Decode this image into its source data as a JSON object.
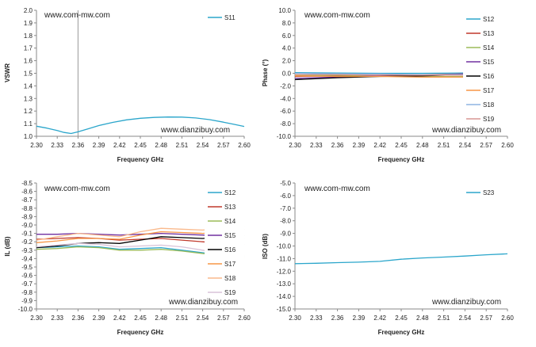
{
  "chart_data": [
    {
      "type": "line",
      "id": "vswr",
      "watermark_top": "www.com-mw.com",
      "watermark_bottom": "www.dianzibuy.com",
      "xlabel": "Frequency GHz",
      "ylabel": "VSWR",
      "xlim": [
        2.3,
        2.6
      ],
      "ylim": [
        1.0,
        2.0
      ],
      "x_ticks": [
        "2.30",
        "2.33",
        "2.36",
        "2.39",
        "2.42",
        "2.45",
        "2.48",
        "2.51",
        "2.54",
        "2.57",
        "2.60"
      ],
      "y_ticks": [
        "1.0",
        "1.1",
        "1.2",
        "1.3",
        "1.4",
        "1.5",
        "1.6",
        "1.7",
        "1.8",
        "1.9",
        "2.0"
      ],
      "marker_x": 2.36,
      "series": [
        {
          "name": "S11",
          "color": "#2ba6cb",
          "x": [
            2.3,
            2.315,
            2.33,
            2.34,
            2.35,
            2.36,
            2.375,
            2.39,
            2.41,
            2.43,
            2.45,
            2.47,
            2.49,
            2.51,
            2.53,
            2.55,
            2.57,
            2.585,
            2.6
          ],
          "y": [
            1.08,
            1.065,
            1.045,
            1.03,
            1.022,
            1.035,
            1.06,
            1.085,
            1.11,
            1.13,
            1.143,
            1.15,
            1.153,
            1.152,
            1.145,
            1.132,
            1.112,
            1.095,
            1.078
          ]
        }
      ]
    },
    {
      "type": "line",
      "id": "phase",
      "watermark_top": "www.com-mw.com",
      "watermark_bottom": "www.dianzibuy.com",
      "xlabel": "Frequency GHz",
      "ylabel": "Phase (°)",
      "xlim": [
        2.3,
        2.6
      ],
      "ylim": [
        -10.0,
        10.0
      ],
      "x_ticks": [
        "2.30",
        "2.33",
        "2.36",
        "2.39",
        "2.42",
        "2.45",
        "2.48",
        "2.51",
        "2.54",
        "2.57",
        "2.60"
      ],
      "y_ticks": [
        "-10.0",
        "-8.0",
        "-6.0",
        "-4.0",
        "-2.0",
        "0.0",
        "2.0",
        "4.0",
        "6.0",
        "8.0",
        "10.0"
      ],
      "series": [
        {
          "name": "S12",
          "color": "#2ba6cb",
          "x": [
            2.3,
            2.36,
            2.42,
            2.48,
            2.54,
            2.6
          ],
          "y": [
            0.1,
            0.05,
            0.0,
            0.0,
            0.05,
            0.1
          ]
        },
        {
          "name": "S13",
          "color": "#c0392b",
          "x": [
            2.3,
            2.36,
            2.42,
            2.48,
            2.54,
            2.6
          ],
          "y": [
            -0.5,
            -0.4,
            -0.3,
            -0.2,
            -0.1,
            0.1
          ]
        },
        {
          "name": "S14",
          "color": "#9bbb59",
          "x": [
            2.3,
            2.36,
            2.42,
            2.48,
            2.54,
            2.6
          ],
          "y": [
            -0.3,
            -0.3,
            -0.4,
            -0.5,
            -0.5,
            -0.3
          ]
        },
        {
          "name": "S15",
          "color": "#7030a0",
          "x": [
            2.3,
            2.36,
            2.42,
            2.48,
            2.54,
            2.6
          ],
          "y": [
            -0.8,
            -0.6,
            -0.4,
            -0.3,
            -0.1,
            0.2
          ]
        },
        {
          "name": "S16",
          "color": "#000000",
          "x": [
            2.3,
            2.36,
            2.42,
            2.48,
            2.54,
            2.6
          ],
          "y": [
            -1.0,
            -0.7,
            -0.5,
            -0.4,
            -0.2,
            0.3
          ]
        },
        {
          "name": "S17",
          "color": "#f79646",
          "x": [
            2.3,
            2.36,
            2.42,
            2.48,
            2.54,
            2.6
          ],
          "y": [
            -0.4,
            -0.5,
            -0.5,
            -0.6,
            -0.6,
            -0.4
          ]
        },
        {
          "name": "S18",
          "color": "#8db3e2",
          "x": [
            2.3,
            2.36,
            2.42,
            2.48,
            2.54,
            2.6
          ],
          "y": [
            0.0,
            -0.1,
            -0.1,
            -0.2,
            -0.2,
            -0.1
          ]
        },
        {
          "name": "S19",
          "color": "#d99694",
          "x": [
            2.3,
            2.36,
            2.42,
            2.48,
            2.54,
            2.6
          ],
          "y": [
            -0.2,
            -0.2,
            -0.3,
            -0.3,
            -0.3,
            -0.2
          ]
        }
      ]
    },
    {
      "type": "line",
      "id": "il",
      "watermark_top": "www.com-mw.com",
      "watermark_bottom": "www.dianzibuy.com",
      "xlabel": "Frequency GHz",
      "ylabel": "IL (dB)",
      "xlim": [
        2.3,
        2.6
      ],
      "ylim": [
        -10.0,
        -8.5
      ],
      "x_ticks": [
        "2.30",
        "2.33",
        "2.36",
        "2.39",
        "2.42",
        "2.45",
        "2.48",
        "2.51",
        "2.54",
        "2.57",
        "2.60"
      ],
      "y_ticks": [
        "-10.0",
        "-9.9",
        "-9.8",
        "-9.7",
        "-9.6",
        "-9.5",
        "-9.4",
        "-9.3",
        "-9.2",
        "-9.1",
        "-9.0",
        "-8.9",
        "-8.8",
        "-8.7",
        "-8.6",
        "-8.5"
      ],
      "series": [
        {
          "name": "S12",
          "color": "#2ba6cb",
          "x": [
            2.3,
            2.33,
            2.36,
            2.39,
            2.42,
            2.45,
            2.48,
            2.51,
            2.54,
            2.57,
            2.6
          ],
          "y": [
            -9.27,
            -9.26,
            -9.25,
            -9.26,
            -9.29,
            -9.28,
            -9.27,
            -9.3,
            -9.33,
            -9.36,
            -9.38
          ]
        },
        {
          "name": "S13",
          "color": "#c0392b",
          "x": [
            2.3,
            2.33,
            2.36,
            2.39,
            2.42,
            2.45,
            2.48,
            2.51,
            2.54,
            2.57,
            2.6
          ],
          "y": [
            -9.17,
            -9.16,
            -9.15,
            -9.16,
            -9.18,
            -9.17,
            -9.16,
            -9.18,
            -9.2,
            -9.22,
            -9.24
          ]
        },
        {
          "name": "S14",
          "color": "#9bbb59",
          "x": [
            2.3,
            2.33,
            2.36,
            2.39,
            2.42,
            2.45,
            2.48,
            2.51,
            2.54,
            2.57,
            2.6
          ],
          "y": [
            -9.29,
            -9.28,
            -9.26,
            -9.27,
            -9.3,
            -9.3,
            -9.29,
            -9.31,
            -9.34,
            -9.37,
            -9.4
          ]
        },
        {
          "name": "S15",
          "color": "#7030a0",
          "x": [
            2.3,
            2.33,
            2.36,
            2.39,
            2.42,
            2.45,
            2.48,
            2.51,
            2.54,
            2.57,
            2.6
          ],
          "y": [
            -9.11,
            -9.11,
            -9.1,
            -9.11,
            -9.12,
            -9.11,
            -9.1,
            -9.11,
            -9.12,
            -9.14,
            -9.16
          ]
        },
        {
          "name": "S16",
          "color": "#000000",
          "x": [
            2.3,
            2.33,
            2.36,
            2.39,
            2.42,
            2.45,
            2.48,
            2.51,
            2.54,
            2.57,
            2.6
          ],
          "y": [
            -9.27,
            -9.25,
            -9.22,
            -9.21,
            -9.22,
            -9.18,
            -9.14,
            -9.15,
            -9.16,
            -9.14,
            -9.12
          ]
        },
        {
          "name": "S17",
          "color": "#f79646",
          "x": [
            2.3,
            2.33,
            2.36,
            2.39,
            2.42,
            2.45,
            2.48,
            2.51,
            2.54,
            2.57,
            2.6
          ],
          "y": [
            -9.21,
            -9.19,
            -9.16,
            -9.16,
            -9.17,
            -9.12,
            -9.08,
            -9.09,
            -9.1,
            -9.08,
            -9.05
          ]
        },
        {
          "name": "S18",
          "color": "#fab98c",
          "x": [
            2.3,
            2.33,
            2.36,
            2.39,
            2.42,
            2.45,
            2.48,
            2.51,
            2.54,
            2.57,
            2.6
          ],
          "y": [
            -9.18,
            -9.14,
            -9.1,
            -9.12,
            -9.14,
            -9.08,
            -9.04,
            -9.05,
            -9.06,
            -9.04,
            -9.01
          ]
        },
        {
          "name": "S19",
          "color": "#d8c3d8",
          "x": [
            2.3,
            2.33,
            2.36,
            2.39,
            2.42,
            2.45,
            2.48,
            2.51,
            2.54,
            2.57,
            2.6
          ],
          "y": [
            -9.26,
            -9.24,
            -9.22,
            -9.23,
            -9.26,
            -9.25,
            -9.24,
            -9.26,
            -9.3,
            -9.34,
            -9.37
          ]
        }
      ]
    },
    {
      "type": "line",
      "id": "iso",
      "watermark_top": "www.com-mw.com",
      "watermark_bottom": "www.dianzibuy.com",
      "xlabel": "Frequency GHz",
      "ylabel": "ISO (dB)",
      "xlim": [
        2.3,
        2.6
      ],
      "ylim": [
        -15.0,
        -5.0
      ],
      "x_ticks": [
        "2.30",
        "2.33",
        "2.36",
        "2.39",
        "2.42",
        "2.45",
        "2.48",
        "2.51",
        "2.54",
        "2.57",
        "2.60"
      ],
      "y_ticks": [
        "-15.0",
        "-14.0",
        "-13.0",
        "-12.0",
        "-11.0",
        "-10.0",
        "-9.0",
        "-8.0",
        "-7.0",
        "-6.0",
        "-5.0"
      ],
      "series": [
        {
          "name": "S23",
          "color": "#2ba6cb",
          "x": [
            2.3,
            2.33,
            2.36,
            2.39,
            2.42,
            2.45,
            2.48,
            2.51,
            2.54,
            2.57,
            2.6
          ],
          "y": [
            -11.4,
            -11.37,
            -11.32,
            -11.28,
            -11.22,
            -11.05,
            -10.95,
            -10.88,
            -10.8,
            -10.7,
            -10.62
          ]
        }
      ]
    }
  ]
}
